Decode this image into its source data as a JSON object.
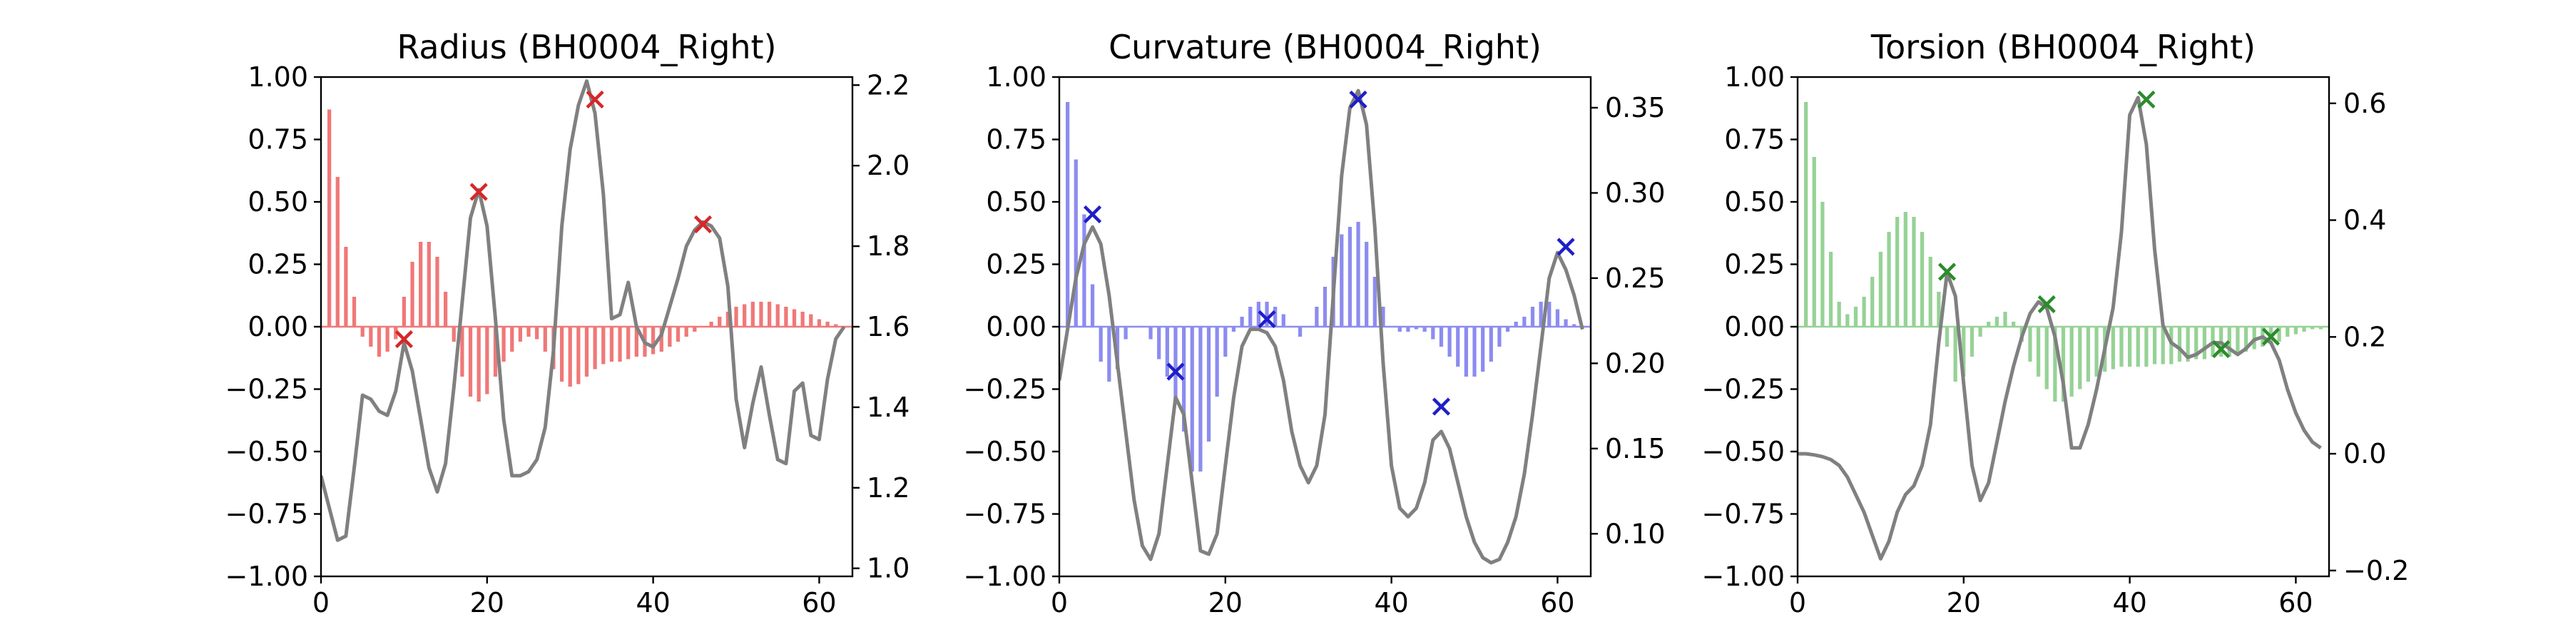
{
  "chart_data": [
    {
      "type": "bar",
      "title": "Radius (BH0004_Right)",
      "xlabel": "",
      "ylabel": "",
      "xlim": [
        0,
        64
      ],
      "ylim": [
        -1,
        1
      ],
      "y2lim": [
        0.98,
        2.22
      ],
      "xticks": [
        "0",
        "20",
        "40",
        "60"
      ],
      "yticks": [
        "−1.00",
        "−0.75",
        "−0.50",
        "−0.25",
        "0.00",
        "0.25",
        "0.50",
        "0.75",
        "1.00"
      ],
      "y2ticks": [
        "1.0",
        "1.2",
        "1.4",
        "1.6",
        "1.8",
        "2.0",
        "2.2"
      ],
      "y2tick_values": [
        1.0,
        1.2,
        1.4,
        1.6,
        1.8,
        2.0,
        2.2
      ],
      "bar_color": "#f07878",
      "line_color": "#808080",
      "marker_color": "#d62728",
      "grid": false,
      "bars": {
        "x": [
          1,
          2,
          3,
          4,
          5,
          6,
          7,
          8,
          9,
          10,
          11,
          12,
          13,
          14,
          15,
          16,
          17,
          18,
          19,
          20,
          21,
          22,
          23,
          24,
          25,
          26,
          27,
          28,
          29,
          30,
          31,
          32,
          33,
          34,
          35,
          36,
          37,
          38,
          39,
          40,
          41,
          42,
          43,
          44,
          45,
          46,
          47,
          48,
          49,
          50,
          51,
          52,
          53,
          54,
          55,
          56,
          57,
          58,
          59,
          60,
          61,
          62,
          63
        ],
        "values": [
          0.87,
          0.6,
          0.32,
          0.12,
          -0.04,
          -0.08,
          -0.12,
          -0.1,
          -0.05,
          0.12,
          0.26,
          0.34,
          0.34,
          0.28,
          0.14,
          -0.06,
          -0.2,
          -0.28,
          -0.3,
          -0.27,
          -0.2,
          -0.14,
          -0.1,
          -0.06,
          -0.04,
          -0.05,
          -0.1,
          -0.17,
          -0.22,
          -0.24,
          -0.23,
          -0.2,
          -0.17,
          -0.15,
          -0.14,
          -0.14,
          -0.13,
          -0.12,
          -0.12,
          -0.11,
          -0.1,
          -0.08,
          -0.06,
          -0.04,
          -0.02,
          0.0,
          0.02,
          0.04,
          0.06,
          0.08,
          0.09,
          0.1,
          0.1,
          0.1,
          0.09,
          0.08,
          0.07,
          0.06,
          0.05,
          0.03,
          0.02,
          0.01,
          0.0
        ]
      },
      "line": {
        "x": [
          0,
          1,
          2,
          3,
          4,
          5,
          6,
          7,
          8,
          9,
          10,
          11,
          12,
          13,
          14,
          15,
          16,
          17,
          18,
          19,
          20,
          21,
          22,
          23,
          24,
          25,
          26,
          27,
          28,
          29,
          30,
          31,
          32,
          33,
          34,
          35,
          36,
          37,
          38,
          39,
          40,
          41,
          42,
          43,
          44,
          45,
          46,
          47,
          48,
          49,
          50,
          51,
          52,
          53,
          54,
          55,
          56,
          57,
          58,
          59,
          60,
          61,
          62,
          63
        ],
        "values": [
          1.23,
          1.15,
          1.07,
          1.08,
          1.25,
          1.43,
          1.42,
          1.39,
          1.38,
          1.44,
          1.56,
          1.49,
          1.37,
          1.25,
          1.19,
          1.26,
          1.45,
          1.66,
          1.87,
          1.94,
          1.85,
          1.62,
          1.37,
          1.23,
          1.23,
          1.24,
          1.27,
          1.35,
          1.54,
          1.85,
          2.04,
          2.15,
          2.21,
          2.13,
          1.93,
          1.62,
          1.63,
          1.71,
          1.6,
          1.56,
          1.55,
          1.58,
          1.65,
          1.72,
          1.8,
          1.84,
          1.86,
          1.85,
          1.82,
          1.7,
          1.42,
          1.3,
          1.41,
          1.5,
          1.38,
          1.27,
          1.26,
          1.44,
          1.46,
          1.33,
          1.32,
          1.47,
          1.57,
          1.6
        ]
      },
      "peaks": {
        "x": [
          10,
          19,
          33,
          46
        ],
        "values": [
          -0.05,
          0.54,
          0.91,
          0.41
        ]
      }
    },
    {
      "type": "bar",
      "title": "Curvature (BH0004_Right)",
      "xlabel": "",
      "ylabel": "",
      "xlim": [
        0,
        64
      ],
      "ylim": [
        -1,
        1
      ],
      "y2lim": [
        0.075,
        0.368
      ],
      "xticks": [
        "0",
        "20",
        "40",
        "60"
      ],
      "yticks": [
        "−1.00",
        "−0.75",
        "−0.50",
        "−0.25",
        "0.00",
        "0.25",
        "0.50",
        "0.75",
        "1.00"
      ],
      "y2ticks": [
        "0.10",
        "0.15",
        "0.20",
        "0.25",
        "0.30",
        "0.35"
      ],
      "y2tick_values": [
        0.1,
        0.15,
        0.2,
        0.25,
        0.3,
        0.35
      ],
      "bar_color": "#8c8cf0",
      "line_color": "#808080",
      "marker_color": "#1f1fc8",
      "grid": false,
      "bars": {
        "x": [
          1,
          2,
          3,
          4,
          5,
          6,
          7,
          8,
          9,
          10,
          11,
          12,
          13,
          14,
          15,
          16,
          17,
          18,
          19,
          20,
          21,
          22,
          23,
          24,
          25,
          26,
          27,
          28,
          29,
          30,
          31,
          32,
          33,
          34,
          35,
          36,
          37,
          38,
          39,
          40,
          41,
          42,
          43,
          44,
          45,
          46,
          47,
          48,
          49,
          50,
          51,
          52,
          53,
          54,
          55,
          56,
          57,
          58,
          59,
          60,
          61,
          62,
          63
        ],
        "values": [
          0.9,
          0.67,
          0.45,
          0.17,
          -0.14,
          -0.22,
          -0.17,
          -0.05,
          0.0,
          0.0,
          -0.05,
          -0.13,
          -0.2,
          -0.3,
          -0.42,
          -0.58,
          -0.58,
          -0.46,
          -0.28,
          -0.12,
          -0.02,
          0.04,
          0.08,
          0.1,
          0.1,
          0.08,
          0.05,
          0.0,
          -0.04,
          0.0,
          0.08,
          0.16,
          0.28,
          0.37,
          0.4,
          0.42,
          0.34,
          0.2,
          0.08,
          0.0,
          -0.02,
          -0.02,
          -0.01,
          -0.02,
          -0.05,
          -0.08,
          -0.12,
          -0.16,
          -0.2,
          -0.2,
          -0.18,
          -0.14,
          -0.08,
          -0.02,
          0.02,
          0.04,
          0.08,
          0.1,
          0.1,
          0.07,
          0.03,
          0.01,
          0.0
        ]
      },
      "line": {
        "x": [
          0,
          1,
          2,
          3,
          4,
          5,
          6,
          7,
          8,
          9,
          10,
          11,
          12,
          13,
          14,
          15,
          16,
          17,
          18,
          19,
          20,
          21,
          22,
          23,
          24,
          25,
          26,
          27,
          28,
          29,
          30,
          31,
          32,
          33,
          34,
          35,
          36,
          37,
          38,
          39,
          40,
          41,
          42,
          43,
          44,
          45,
          46,
          47,
          48,
          49,
          50,
          51,
          52,
          53,
          54,
          55,
          56,
          57,
          58,
          59,
          60,
          61,
          62,
          63
        ],
        "values": [
          0.19,
          0.22,
          0.25,
          0.27,
          0.28,
          0.27,
          0.24,
          0.2,
          0.16,
          0.12,
          0.093,
          0.085,
          0.1,
          0.14,
          0.18,
          0.17,
          0.13,
          0.09,
          0.088,
          0.1,
          0.14,
          0.18,
          0.21,
          0.22,
          0.22,
          0.218,
          0.21,
          0.19,
          0.16,
          0.14,
          0.13,
          0.14,
          0.17,
          0.24,
          0.31,
          0.35,
          0.36,
          0.34,
          0.28,
          0.2,
          0.14,
          0.115,
          0.11,
          0.115,
          0.13,
          0.155,
          0.16,
          0.15,
          0.13,
          0.11,
          0.095,
          0.086,
          0.083,
          0.085,
          0.095,
          0.11,
          0.135,
          0.17,
          0.21,
          0.25,
          0.265,
          0.255,
          0.24,
          0.22
        ]
      },
      "peaks": {
        "x": [
          4,
          14,
          25,
          36,
          46,
          61
        ],
        "values": [
          0.45,
          -0.18,
          0.03,
          0.91,
          -0.32,
          0.32
        ]
      }
    },
    {
      "type": "bar",
      "title": "Torsion (BH0004_Right)",
      "xlabel": "",
      "ylabel": "",
      "xlim": [
        0,
        64
      ],
      "ylim": [
        -1,
        1
      ],
      "y2lim": [
        -0.21,
        0.645
      ],
      "xticks": [
        "0",
        "20",
        "40",
        "60"
      ],
      "yticks": [
        "−1.00",
        "−0.75",
        "−0.50",
        "−0.25",
        "0.00",
        "0.25",
        "0.50",
        "0.75",
        "1.00"
      ],
      "y2ticks": [
        "−0.2",
        "0.0",
        "0.2",
        "0.4",
        "0.6"
      ],
      "y2tick_values": [
        -0.2,
        0.0,
        0.2,
        0.4,
        0.6
      ],
      "bar_color": "#96d296",
      "line_color": "#808080",
      "marker_color": "#2c8c2c",
      "grid": false,
      "bars": {
        "x": [
          1,
          2,
          3,
          4,
          5,
          6,
          7,
          8,
          9,
          10,
          11,
          12,
          13,
          14,
          15,
          16,
          17,
          18,
          19,
          20,
          21,
          22,
          23,
          24,
          25,
          26,
          27,
          28,
          29,
          30,
          31,
          32,
          33,
          34,
          35,
          36,
          37,
          38,
          39,
          40,
          41,
          42,
          43,
          44,
          45,
          46,
          47,
          48,
          49,
          50,
          51,
          52,
          53,
          54,
          55,
          56,
          57,
          58,
          59,
          60,
          61,
          62,
          63
        ],
        "values": [
          0.9,
          0.68,
          0.5,
          0.3,
          0.1,
          0.05,
          0.08,
          0.12,
          0.2,
          0.3,
          0.38,
          0.44,
          0.46,
          0.44,
          0.38,
          0.28,
          0.14,
          -0.08,
          -0.22,
          -0.2,
          -0.12,
          -0.04,
          0.02,
          0.04,
          0.06,
          0.02,
          -0.06,
          -0.14,
          -0.2,
          -0.25,
          -0.3,
          -0.3,
          -0.28,
          -0.25,
          -0.22,
          -0.2,
          -0.18,
          -0.17,
          -0.16,
          -0.16,
          -0.16,
          -0.16,
          -0.15,
          -0.15,
          -0.15,
          -0.14,
          -0.14,
          -0.13,
          -0.13,
          -0.12,
          -0.12,
          -0.12,
          -0.11,
          -0.1,
          -0.09,
          -0.08,
          -0.07,
          -0.06,
          -0.04,
          -0.03,
          -0.02,
          -0.01,
          -0.01
        ]
      },
      "line": {
        "x": [
          0,
          1,
          2,
          3,
          4,
          5,
          6,
          7,
          8,
          9,
          10,
          11,
          12,
          13,
          14,
          15,
          16,
          17,
          18,
          19,
          20,
          21,
          22,
          23,
          24,
          25,
          26,
          27,
          28,
          29,
          30,
          31,
          32,
          33,
          34,
          35,
          36,
          37,
          38,
          39,
          40,
          41,
          42,
          43,
          44,
          45,
          46,
          47,
          48,
          49,
          50,
          51,
          52,
          53,
          54,
          55,
          56,
          57,
          58,
          59,
          60,
          61,
          62,
          63
        ],
        "values": [
          0.0,
          0.0,
          -0.002,
          -0.005,
          -0.01,
          -0.02,
          -0.04,
          -0.07,
          -0.1,
          -0.14,
          -0.18,
          -0.15,
          -0.1,
          -0.07,
          -0.055,
          -0.02,
          0.05,
          0.19,
          0.31,
          0.27,
          0.12,
          -0.02,
          -0.08,
          -0.05,
          0.02,
          0.09,
          0.15,
          0.2,
          0.24,
          0.26,
          0.25,
          0.2,
          0.12,
          0.01,
          0.01,
          0.05,
          0.11,
          0.18,
          0.25,
          0.38,
          0.58,
          0.61,
          0.53,
          0.35,
          0.22,
          0.19,
          0.18,
          0.165,
          0.17,
          0.18,
          0.19,
          0.19,
          0.18,
          0.17,
          0.18,
          0.195,
          0.2,
          0.19,
          0.16,
          0.11,
          0.07,
          0.04,
          0.02,
          0.01
        ]
      },
      "peaks": {
        "x": [
          18,
          30,
          42,
          51,
          57
        ],
        "values": [
          0.22,
          0.09,
          0.91,
          -0.09,
          -0.04
        ]
      }
    }
  ]
}
